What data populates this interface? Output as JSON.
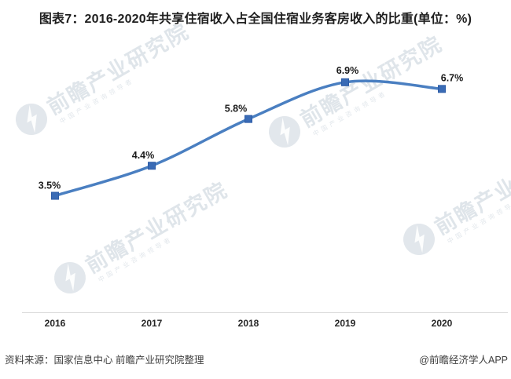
{
  "page": {
    "title": "图表7：2016-2020年共享住宿收入占全国住宿业务客房收入的比重(单位：%)"
  },
  "chart_data": {
    "type": "line",
    "title": "图表7：2016-2020年共享住宿收入占全国住宿业务客房收入的比重(单位：%)",
    "categories": [
      "2016",
      "2017",
      "2018",
      "2019",
      "2020"
    ],
    "values": [
      3.5,
      4.4,
      5.8,
      6.9,
      6.7
    ],
    "data_labels": [
      "3.5%",
      "4.4%",
      "5.8%",
      "6.9%",
      "6.7%"
    ],
    "unit": "%",
    "xlabel": "",
    "ylabel": "",
    "ylim": [
      0,
      8
    ],
    "grid": false,
    "legend": "none",
    "smooth": true,
    "line_color": "#4a7fc1",
    "marker_color": "#3a6bb5",
    "marker_border_color": "#2d5ca6",
    "axis_color": "#d9d9d9",
    "label_color": "#1a1a1a",
    "tick_color": "#262626"
  },
  "footer": {
    "source": "资料来源：国家信息中心 前瞻产业研究院整理",
    "credit": "@前瞻经济学人APP"
  },
  "watermark": {
    "text": "前瞻产业研究院",
    "subtext": "中国产业咨询领导者",
    "color": "#9fb0bf"
  }
}
